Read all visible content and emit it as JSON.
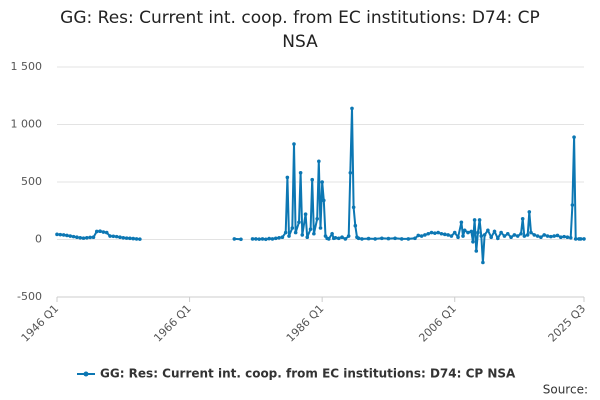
{
  "chart_data": {
    "type": "line",
    "title": "GG: Res: Current int. coop. from EC institutions: D74: CP NSA",
    "source_label": "Source:",
    "x": [
      1946,
      1946.5,
      1947,
      1947.5,
      1948,
      1948.5,
      1949,
      1949.5,
      1950,
      1950.5,
      1951,
      1951.5,
      1952,
      1952.5,
      1953,
      1953.5,
      1954,
      1954.5,
      1955,
      1955.5,
      1956,
      1956.5,
      1957,
      1957.5,
      1958,
      1958.5,
      1965,
      1972.75,
      1973.75,
      1974.5,
      1975.5,
      1976,
      1976.5,
      1977,
      1977.5,
      1978,
      1978.5,
      1979,
      1979.5,
      1980,
      1980.5,
      1980.75,
      1981,
      1981.5,
      1981.75,
      1982,
      1982.5,
      1982.75,
      1983,
      1983.5,
      1983.75,
      1984.25,
      1984.5,
      1984.75,
      1985.25,
      1985.5,
      1985.75,
      1986,
      1986.25,
      1986.5,
      1986.75,
      1987,
      1987.5,
      1987.75,
      1988,
      1988.5,
      1989,
      1989.5,
      1990,
      1990.25,
      1990.5,
      1990.75,
      1991,
      1991.25,
      1991.5,
      1992,
      1993,
      1994,
      1995,
      1996,
      1997,
      1998,
      1999,
      2000,
      2000.5,
      2001,
      2001.5,
      2002,
      2002.5,
      2003,
      2003.5,
      2004,
      2004.5,
      2005,
      2005.5,
      2006,
      2006.5,
      2007,
      2007.25,
      2007.5,
      2008,
      2008.5,
      2008.75,
      2009,
      2009.25,
      2009.5,
      2009.75,
      2010,
      2010.25,
      2010.5,
      2011,
      2011.5,
      2012,
      2012.5,
      2013,
      2013.5,
      2014,
      2014.5,
      2015,
      2015.5,
      2016,
      2016.25,
      2016.5,
      2017,
      2017.25,
      2017.5,
      2018,
      2018.5,
      2019,
      2019.5,
      2020,
      2020.5,
      2021,
      2021.5,
      2022,
      2022.5,
      2023,
      2023.5,
      2023.75,
      2024,
      2024.25,
      2024.75,
      2025,
      2025.5
    ],
    "series": [
      {
        "name": "GG: Res: Current int. coop. from EC institutions: D74: CP NSA",
        "color": "#0c77b3",
        "values": [
          45,
          42,
          40,
          35,
          30,
          25,
          20,
          15,
          12,
          15,
          18,
          20,
          70,
          72,
          65,
          60,
          30,
          28,
          25,
          20,
          15,
          12,
          10,
          8,
          5,
          3,
          null,
          5,
          2,
          null,
          5,
          5,
          3,
          5,
          2,
          8,
          5,
          10,
          15,
          20,
          60,
          540,
          30,
          100,
          830,
          60,
          150,
          580,
          40,
          220,
          20,
          90,
          520,
          50,
          180,
          680,
          100,
          500,
          340,
          30,
          10,
          5,
          50,
          10,
          15,
          10,
          20,
          5,
          30,
          580,
          1140,
          280,
          120,
          20,
          10,
          5,
          8,
          5,
          10,
          8,
          10,
          5,
          5,
          10,
          35,
          30,
          40,
          50,
          60,
          55,
          60,
          50,
          45,
          40,
          30,
          60,
          20,
          150,
          30,
          80,
          60,
          70,
          -20,
          170,
          -100,
          60,
          170,
          30,
          -200,
          40,
          80,
          20,
          70,
          10,
          60,
          30,
          50,
          20,
          40,
          30,
          50,
          180,
          30,
          40,
          240,
          60,
          40,
          30,
          20,
          40,
          30,
          25,
          30,
          35,
          20,
          25,
          20,
          15,
          300,
          890,
          5,
          5,
          5,
          5
        ]
      }
    ],
    "xlim": [
      1946,
      2025.5
    ],
    "xticks": [
      {
        "value": 1946,
        "label": "1946 Q1"
      },
      {
        "value": 1966,
        "label": "1966 Q1"
      },
      {
        "value": 1986,
        "label": "1986 Q1"
      },
      {
        "value": 2006,
        "label": "2006 Q1"
      },
      {
        "value": 2025.5,
        "label": "2025 Q3"
      }
    ],
    "ylim": [
      -500,
      1500
    ],
    "yticks": [
      {
        "value": -500,
        "label": "-500"
      },
      0,
      500,
      {
        "value": 1000,
        "label": "1 000"
      },
      {
        "value": 1500,
        "label": "1 500"
      }
    ],
    "grid": true
  }
}
